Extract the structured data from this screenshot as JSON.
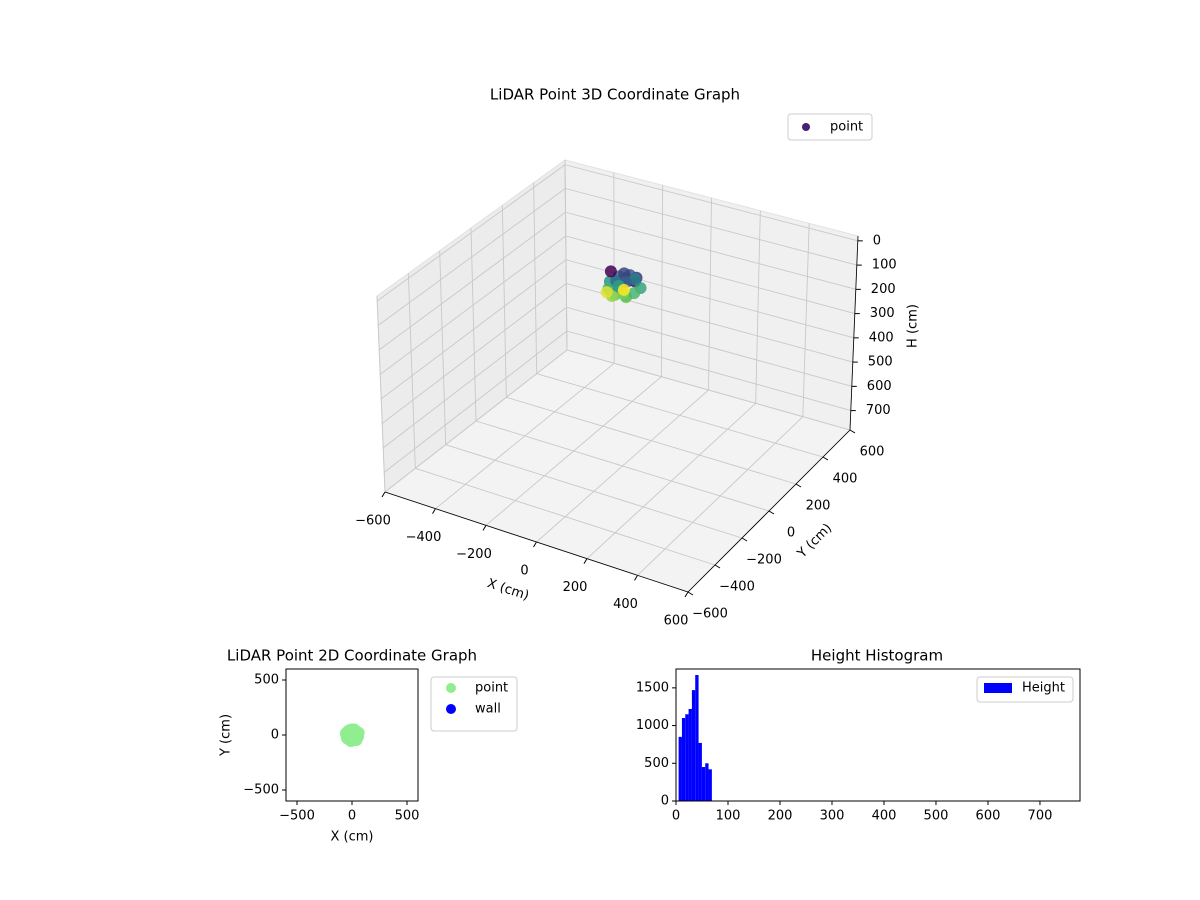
{
  "chart_data": [
    {
      "type": "scatter3d",
      "title": "LiDAR Point 3D Coordinate Graph",
      "xlabel": "X (cm)",
      "ylabel": "Y (cm)",
      "zlabel": "H (cm)",
      "xlim": [
        -600,
        600
      ],
      "ylim": [
        -600,
        600
      ],
      "zlim": [
        780,
        -20
      ],
      "xticks": [
        {
          "value": -600,
          "label": "−600"
        },
        {
          "value": -400,
          "label": "−400"
        },
        {
          "value": -200,
          "label": "−200"
        },
        0,
        200,
        400,
        600
      ],
      "yticks": [
        {
          "value": -600,
          "label": "−600"
        },
        {
          "value": -400,
          "label": "−400"
        },
        {
          "value": -200,
          "label": "−200"
        },
        0,
        200,
        400,
        600
      ],
      "zticks": [
        0,
        100,
        200,
        300,
        400,
        500,
        600,
        700
      ],
      "grid": true,
      "legend": "upper right",
      "colormap": "viridis",
      "series": [
        {
          "name": "point",
          "color": "#482173",
          "x": [
            50,
            35,
            0,
            -35,
            -50,
            -35,
            0,
            35,
            25,
            0,
            -25,
            0,
            60,
            40,
            -10,
            -45,
            -55,
            -20,
            20,
            55,
            10,
            -10,
            15,
            -5
          ],
          "y": [
            0,
            35,
            50,
            35,
            0,
            -35,
            -50,
            -35,
            0,
            25,
            0,
            -25,
            20,
            -45,
            -55,
            -30,
            15,
            45,
            50,
            -15,
            5,
            -8,
            -20,
            18
          ],
          "z": [
            8,
            15,
            22,
            30,
            38,
            45,
            52,
            60,
            12,
            20,
            28,
            35,
            42,
            50,
            58,
            65,
            5,
            18,
            33,
            47,
            25,
            40,
            55,
            68
          ]
        }
      ]
    },
    {
      "type": "scatter",
      "title": "LiDAR Point 2D Coordinate Graph",
      "xlabel": "X (cm)",
      "ylabel": "Y (cm)",
      "xlim": [
        -600,
        600
      ],
      "ylim": [
        -600,
        600
      ],
      "xticks": [
        {
          "value": -500,
          "label": "−500"
        },
        0,
        500
      ],
      "yticks": [
        {
          "value": -500,
          "label": "−500"
        },
        0,
        500
      ],
      "legend": "outside right",
      "series": [
        {
          "name": "point",
          "color": "#90ee90",
          "x": [
            50,
            35,
            0,
            -35,
            -50,
            -35,
            0,
            35,
            25,
            0,
            -25,
            0,
            60,
            40,
            -10,
            -45,
            -55,
            -20,
            20,
            55,
            10,
            -10,
            15,
            -5
          ],
          "y": [
            0,
            35,
            50,
            35,
            0,
            -35,
            -50,
            -35,
            0,
            25,
            0,
            -25,
            20,
            -45,
            -55,
            -30,
            15,
            45,
            50,
            -15,
            5,
            -8,
            -20,
            18
          ]
        },
        {
          "name": "wall",
          "color": "#0000ff",
          "x": [],
          "y": []
        }
      ]
    },
    {
      "type": "histogram",
      "title": "Height Histogram",
      "xlim": [
        0,
        777
      ],
      "ylim": [
        0,
        1750
      ],
      "xticks": [
        0,
        100,
        200,
        300,
        400,
        500,
        600,
        700
      ],
      "yticks": [
        0,
        500,
        1000,
        1500
      ],
      "legend": "upper right",
      "bins": [
        5,
        11.4,
        17.8,
        24.2,
        30.6,
        37,
        43.4,
        49.8,
        56.2,
        62.6,
        69
      ],
      "series": [
        {
          "name": "Height",
          "color": "#0000ff",
          "values": [
            850,
            1100,
            1150,
            1220,
            1470,
            1670,
            770,
            450,
            500,
            420
          ]
        }
      ]
    }
  ]
}
